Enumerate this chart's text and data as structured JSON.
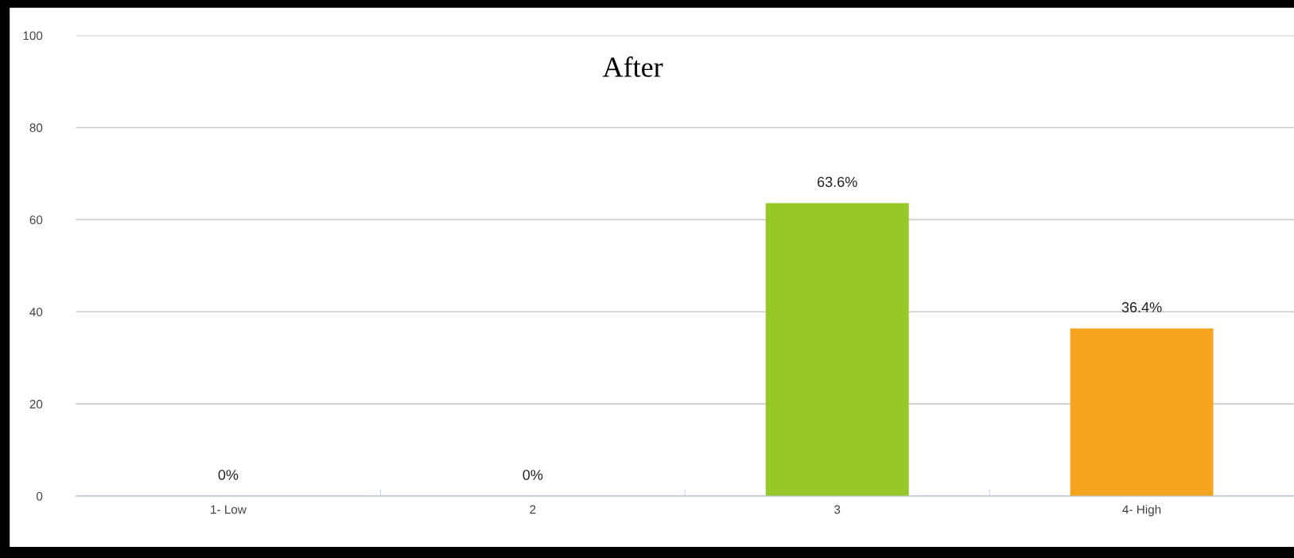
{
  "chart_data": {
    "type": "bar",
    "title": "After",
    "categories": [
      "1- Low",
      "2",
      "3",
      "4- High"
    ],
    "values": [
      0,
      0,
      63.6,
      36.4
    ],
    "colors": [
      null,
      null,
      "#97c82a",
      "#f5a41d"
    ],
    "value_labels": [
      "0%",
      "0%",
      "63.6%",
      "36.4%"
    ],
    "ylim": [
      0,
      100
    ],
    "yticks": [
      0,
      20,
      40,
      60,
      80,
      100
    ],
    "grid": "y"
  }
}
